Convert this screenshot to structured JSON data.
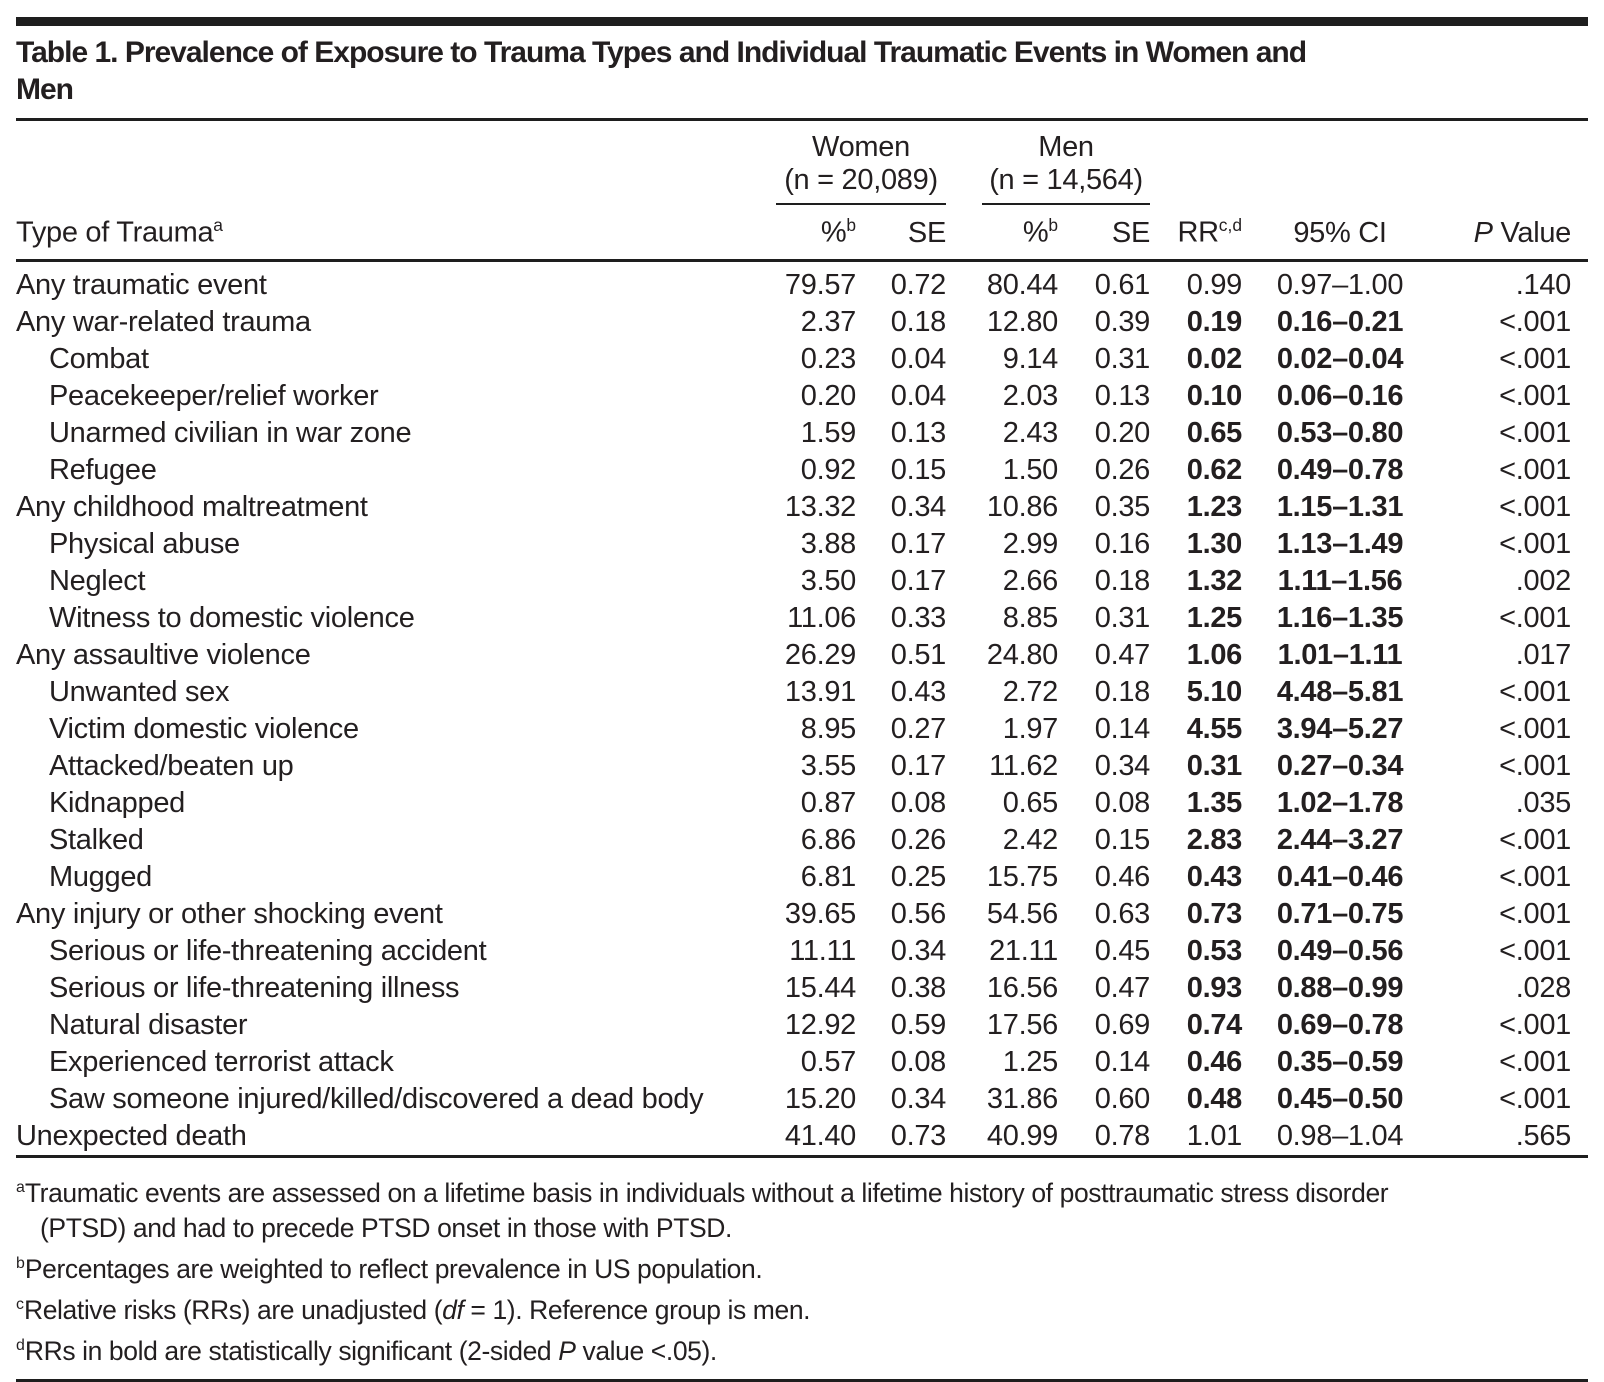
{
  "title": "Table 1. Prevalence of Exposure to Trauma Types and Individual Traumatic Events in Women and\nMen",
  "colors": {
    "text": "#231f20",
    "rule": "#1e1e1e",
    "background": "#ffffff"
  },
  "table": {
    "col_groups": {
      "women": {
        "name": "Women",
        "n": "(n = 20,089)"
      },
      "men": {
        "name": "Men",
        "n": "(n = 14,564)"
      }
    },
    "headers": {
      "type": {
        "label": "Type of Trauma",
        "sup": "a"
      },
      "pct": {
        "label": "%",
        "sup": "b"
      },
      "se": "SE",
      "rr": {
        "label": "RR",
        "sup": "c,d"
      },
      "ci": "95% CI",
      "p": {
        "italic": "P",
        "rest": " Value"
      }
    },
    "rows": [
      {
        "label": "Any traumatic event",
        "indent": false,
        "women_pct": "79.57",
        "women_se": "0.72",
        "men_pct": "80.44",
        "men_se": "0.61",
        "rr": "0.99",
        "ci": "0.97–1.00",
        "p": ".140",
        "bold": false
      },
      {
        "label": "Any war-related trauma",
        "indent": false,
        "women_pct": "2.37",
        "women_se": "0.18",
        "men_pct": "12.80",
        "men_se": "0.39",
        "rr": "0.19",
        "ci": "0.16–0.21",
        "p": "<.001",
        "bold": true
      },
      {
        "label": "Combat",
        "indent": true,
        "women_pct": "0.23",
        "women_se": "0.04",
        "men_pct": "9.14",
        "men_se": "0.31",
        "rr": "0.02",
        "ci": "0.02–0.04",
        "p": "<.001",
        "bold": true
      },
      {
        "label": "Peacekeeper/relief worker",
        "indent": true,
        "women_pct": "0.20",
        "women_se": "0.04",
        "men_pct": "2.03",
        "men_se": "0.13",
        "rr": "0.10",
        "ci": "0.06–0.16",
        "p": "<.001",
        "bold": true
      },
      {
        "label": "Unarmed civilian in war zone",
        "indent": true,
        "women_pct": "1.59",
        "women_se": "0.13",
        "men_pct": "2.43",
        "men_se": "0.20",
        "rr": "0.65",
        "ci": "0.53–0.80",
        "p": "<.001",
        "bold": true
      },
      {
        "label": "Refugee",
        "indent": true,
        "women_pct": "0.92",
        "women_se": "0.15",
        "men_pct": "1.50",
        "men_se": "0.26",
        "rr": "0.62",
        "ci": "0.49–0.78",
        "p": "<.001",
        "bold": true
      },
      {
        "label": "Any childhood maltreatment",
        "indent": false,
        "women_pct": "13.32",
        "women_se": "0.34",
        "men_pct": "10.86",
        "men_se": "0.35",
        "rr": "1.23",
        "ci": "1.15–1.31",
        "p": "<.001",
        "bold": true
      },
      {
        "label": "Physical abuse",
        "indent": true,
        "women_pct": "3.88",
        "women_se": "0.17",
        "men_pct": "2.99",
        "men_se": "0.16",
        "rr": "1.30",
        "ci": "1.13–1.49",
        "p": "<.001",
        "bold": true
      },
      {
        "label": "Neglect",
        "indent": true,
        "women_pct": "3.50",
        "women_se": "0.17",
        "men_pct": "2.66",
        "men_se": "0.18",
        "rr": "1.32",
        "ci": "1.11–1.56",
        "p": ".002",
        "bold": true
      },
      {
        "label": "Witness to domestic violence",
        "indent": true,
        "women_pct": "11.06",
        "women_se": "0.33",
        "men_pct": "8.85",
        "men_se": "0.31",
        "rr": "1.25",
        "ci": "1.16–1.35",
        "p": "<.001",
        "bold": true
      },
      {
        "label": "Any assaultive violence",
        "indent": false,
        "women_pct": "26.29",
        "women_se": "0.51",
        "men_pct": "24.80",
        "men_se": "0.47",
        "rr": "1.06",
        "ci": "1.01–1.11",
        "p": ".017",
        "bold": true
      },
      {
        "label": "Unwanted sex",
        "indent": true,
        "women_pct": "13.91",
        "women_se": "0.43",
        "men_pct": "2.72",
        "men_se": "0.18",
        "rr": "5.10",
        "ci": "4.48–5.81",
        "p": "<.001",
        "bold": true
      },
      {
        "label": "Victim domestic violence",
        "indent": true,
        "women_pct": "8.95",
        "women_se": "0.27",
        "men_pct": "1.97",
        "men_se": "0.14",
        "rr": "4.55",
        "ci": "3.94–5.27",
        "p": "<.001",
        "bold": true
      },
      {
        "label": "Attacked/beaten up",
        "indent": true,
        "women_pct": "3.55",
        "women_se": "0.17",
        "men_pct": "11.62",
        "men_se": "0.34",
        "rr": "0.31",
        "ci": "0.27–0.34",
        "p": "<.001",
        "bold": true
      },
      {
        "label": "Kidnapped",
        "indent": true,
        "women_pct": "0.87",
        "women_se": "0.08",
        "men_pct": "0.65",
        "men_se": "0.08",
        "rr": "1.35",
        "ci": "1.02–1.78",
        "p": ".035",
        "bold": true
      },
      {
        "label": "Stalked",
        "indent": true,
        "women_pct": "6.86",
        "women_se": "0.26",
        "men_pct": "2.42",
        "men_se": "0.15",
        "rr": "2.83",
        "ci": "2.44–3.27",
        "p": "<.001",
        "bold": true
      },
      {
        "label": "Mugged",
        "indent": true,
        "women_pct": "6.81",
        "women_se": "0.25",
        "men_pct": "15.75",
        "men_se": "0.46",
        "rr": "0.43",
        "ci": "0.41–0.46",
        "p": "<.001",
        "bold": true
      },
      {
        "label": "Any injury or other shocking event",
        "indent": false,
        "women_pct": "39.65",
        "women_se": "0.56",
        "men_pct": "54.56",
        "men_se": "0.63",
        "rr": "0.73",
        "ci": "0.71–0.75",
        "p": "<.001",
        "bold": true
      },
      {
        "label": "Serious or life-threatening accident",
        "indent": true,
        "women_pct": "11.11",
        "women_se": "0.34",
        "men_pct": "21.11",
        "men_se": "0.45",
        "rr": "0.53",
        "ci": "0.49–0.56",
        "p": "<.001",
        "bold": true
      },
      {
        "label": "Serious or life-threatening illness",
        "indent": true,
        "women_pct": "15.44",
        "women_se": "0.38",
        "men_pct": "16.56",
        "men_se": "0.47",
        "rr": "0.93",
        "ci": "0.88–0.99",
        "p": ".028",
        "bold": true
      },
      {
        "label": "Natural disaster",
        "indent": true,
        "women_pct": "12.92",
        "women_se": "0.59",
        "men_pct": "17.56",
        "men_se": "0.69",
        "rr": "0.74",
        "ci": "0.69–0.78",
        "p": "<.001",
        "bold": true
      },
      {
        "label": "Experienced terrorist attack",
        "indent": true,
        "women_pct": "0.57",
        "women_se": "0.08",
        "men_pct": "1.25",
        "men_se": "0.14",
        "rr": "0.46",
        "ci": "0.35–0.59",
        "p": "<.001",
        "bold": true
      },
      {
        "label": "Saw someone injured/killed/discovered a dead body",
        "indent": true,
        "women_pct": "15.20",
        "women_se": "0.34",
        "men_pct": "31.86",
        "men_se": "0.60",
        "rr": "0.48",
        "ci": "0.45–0.50",
        "p": "<.001",
        "bold": true
      },
      {
        "label": "Unexpected death",
        "indent": false,
        "women_pct": "41.40",
        "women_se": "0.73",
        "men_pct": "40.99",
        "men_se": "0.78",
        "rr": "1.01",
        "ci": "0.98–1.04",
        "p": ".565",
        "bold": false
      }
    ]
  },
  "footnotes": [
    {
      "marker": "a",
      "lines": [
        [
          {
            "t": "Traumatic events are assessed on a lifetime basis in individuals without a lifetime history of posttraumatic stress disorder",
            "i": false
          }
        ],
        [
          {
            "t": "(PTSD) and had to precede PTSD onset in those with PTSD.",
            "i": false
          }
        ]
      ]
    },
    {
      "marker": "b",
      "lines": [
        [
          {
            "t": "Percentages are weighted to reflect prevalence in US population.",
            "i": false
          }
        ]
      ]
    },
    {
      "marker": "c",
      "lines": [
        [
          {
            "t": "Relative risks (RRs) are unadjusted (",
            "i": false
          },
          {
            "t": "df",
            "i": true
          },
          {
            "t": " = 1). Reference group is men.",
            "i": false
          }
        ]
      ]
    },
    {
      "marker": "d",
      "lines": [
        [
          {
            "t": "RRs in bold are statistically significant (2-sided ",
            "i": false
          },
          {
            "t": "P",
            "i": true
          },
          {
            "t": " value <.05).",
            "i": false
          }
        ]
      ]
    }
  ]
}
